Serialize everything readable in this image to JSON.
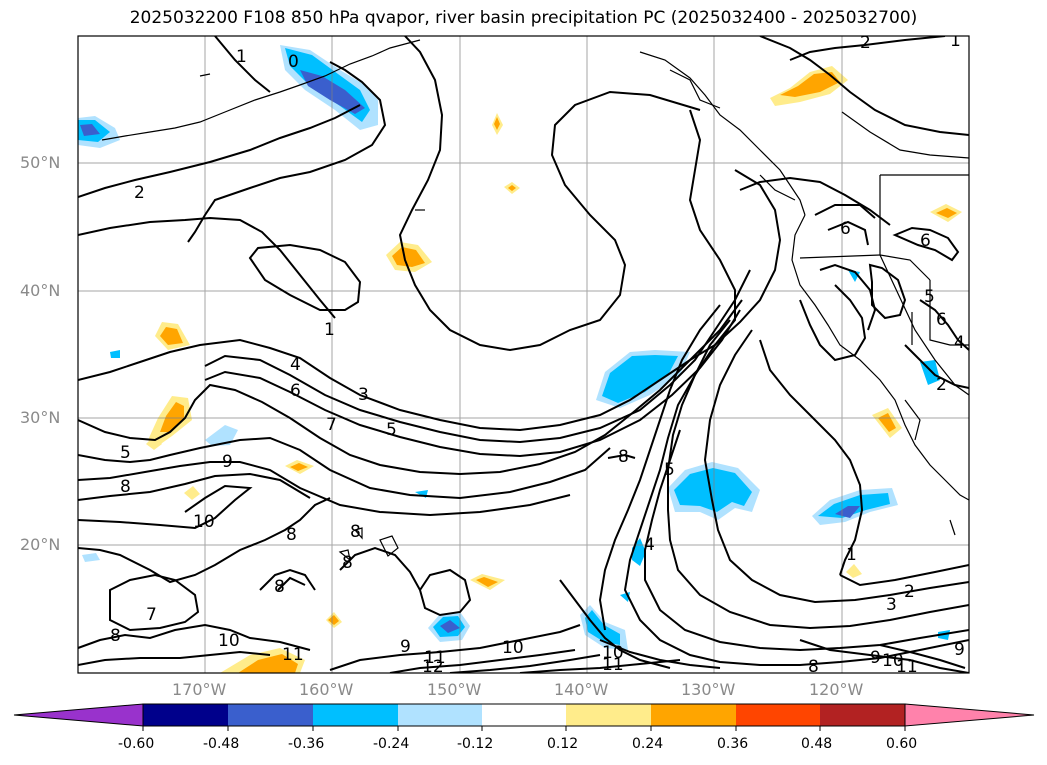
{
  "title": "2025032200 F108 850 hPa qvapor, river basin precipitation PC (2025032400 - 2025032700)",
  "lat_labels": [
    "50°N",
    "40°N",
    "30°N",
    "20°N"
  ],
  "lon_labels": [
    "170°W",
    "160°W",
    "150°W",
    "140°W",
    "130°W",
    "120°W"
  ],
  "colorbar": {
    "colors": [
      "#9932cc",
      "#00008b",
      "#3a5fcd",
      "#00bfff",
      "#b0e2ff",
      "#ffffff",
      "#ffec8b",
      "#ffa500",
      "#ff4500",
      "#b22222",
      "#ff82ab"
    ],
    "under_color": "#9932cc",
    "over_color": "#ff82ab",
    "tick_labels": [
      "-0.60",
      "-0.48",
      "-0.36",
      "-0.24",
      "-0.12",
      "0.12",
      "0.24",
      "0.36",
      "0.48",
      "0.60"
    ]
  },
  "contour_labels": [
    "1",
    "0",
    "2",
    "1",
    "4",
    "6",
    "3",
    "7",
    "5",
    "5",
    "8",
    "9",
    "10",
    "8",
    "8",
    "8",
    "8",
    "7",
    "8",
    "10",
    "11",
    "12",
    "9",
    "11",
    "10",
    "10",
    "11",
    "8",
    "5",
    "4",
    "1",
    "2",
    "3",
    "8",
    "9",
    "10",
    "11",
    "9",
    "6",
    "6",
    "5",
    "6",
    "2",
    "4",
    "2",
    "1"
  ]
}
